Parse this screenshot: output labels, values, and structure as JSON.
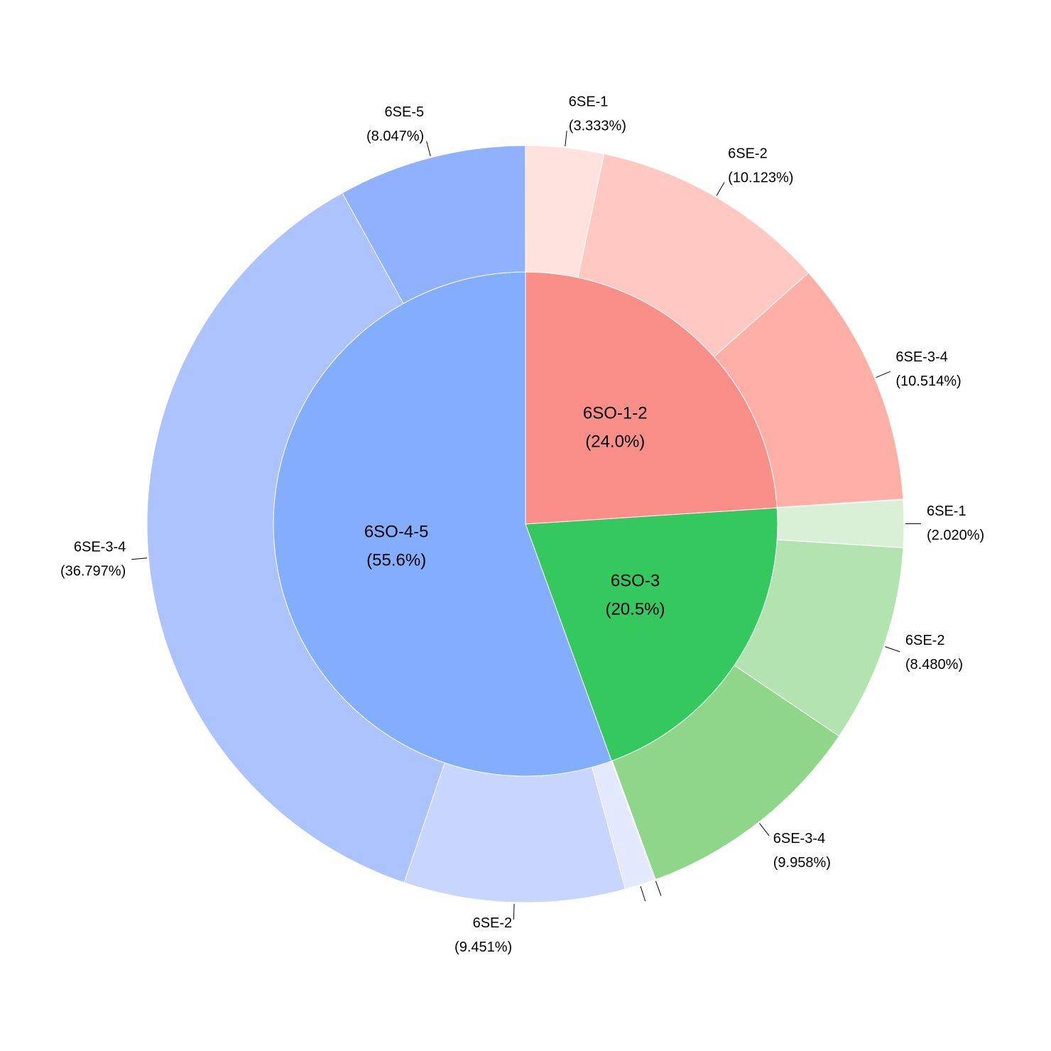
{
  "chart_data": {
    "type": "sunburst",
    "categories": [
      {
        "label": "6SO-1-2",
        "value": 24.0,
        "value_label": "(24.0%)",
        "color": "#fa8f8a",
        "children": [
          {
            "label": "6SE-1",
            "value": 3.333,
            "value_label": "(3.333%)",
            "color": "#ffe2de"
          },
          {
            "label": "6SE-2",
            "value": 10.123,
            "value_label": "(10.123%)",
            "color": "#ffc8c1"
          },
          {
            "label": "6SE-3-4",
            "value": 10.514,
            "value_label": "(10.514%)",
            "color": "#ffb0a6"
          }
        ]
      },
      {
        "label": "6SO-3",
        "value": 20.5,
        "value_label": "(20.5%)",
        "color": "#34c85e",
        "children": [
          {
            "label": "6SE-1",
            "value": 2.02,
            "value_label": "(2.020%)",
            "color": "#d9f0d7"
          },
          {
            "label": "6SE-2",
            "value": 8.48,
            "value_label": "(8.480%)",
            "color": "#b3e4b0"
          },
          {
            "label": "6SE-3-4",
            "value": 9.958,
            "value_label": "(9.958%)",
            "color": "#8fd68a"
          },
          {
            "label": null,
            "value": 0.04,
            "value_label": null,
            "color": "#6cc768"
          }
        ]
      },
      {
        "label": "6SO-4-5",
        "value": 55.6,
        "value_label": "(55.6%)",
        "color": "#83aefe",
        "children": [
          {
            "label": null,
            "value": 1.3,
            "value_label": null,
            "color": "#e3e9ff"
          },
          {
            "label": "6SE-2",
            "value": 9.451,
            "value_label": "(9.451%)",
            "color": "#c8d5ff"
          },
          {
            "label": "6SE-3-4",
            "value": 36.797,
            "value_label": "(36.797%)",
            "color": "#adc3fe"
          },
          {
            "label": "6SE-5",
            "value": 8.047,
            "value_label": "(8.047%)",
            "color": "#8fb1fe"
          }
        ]
      }
    ]
  }
}
